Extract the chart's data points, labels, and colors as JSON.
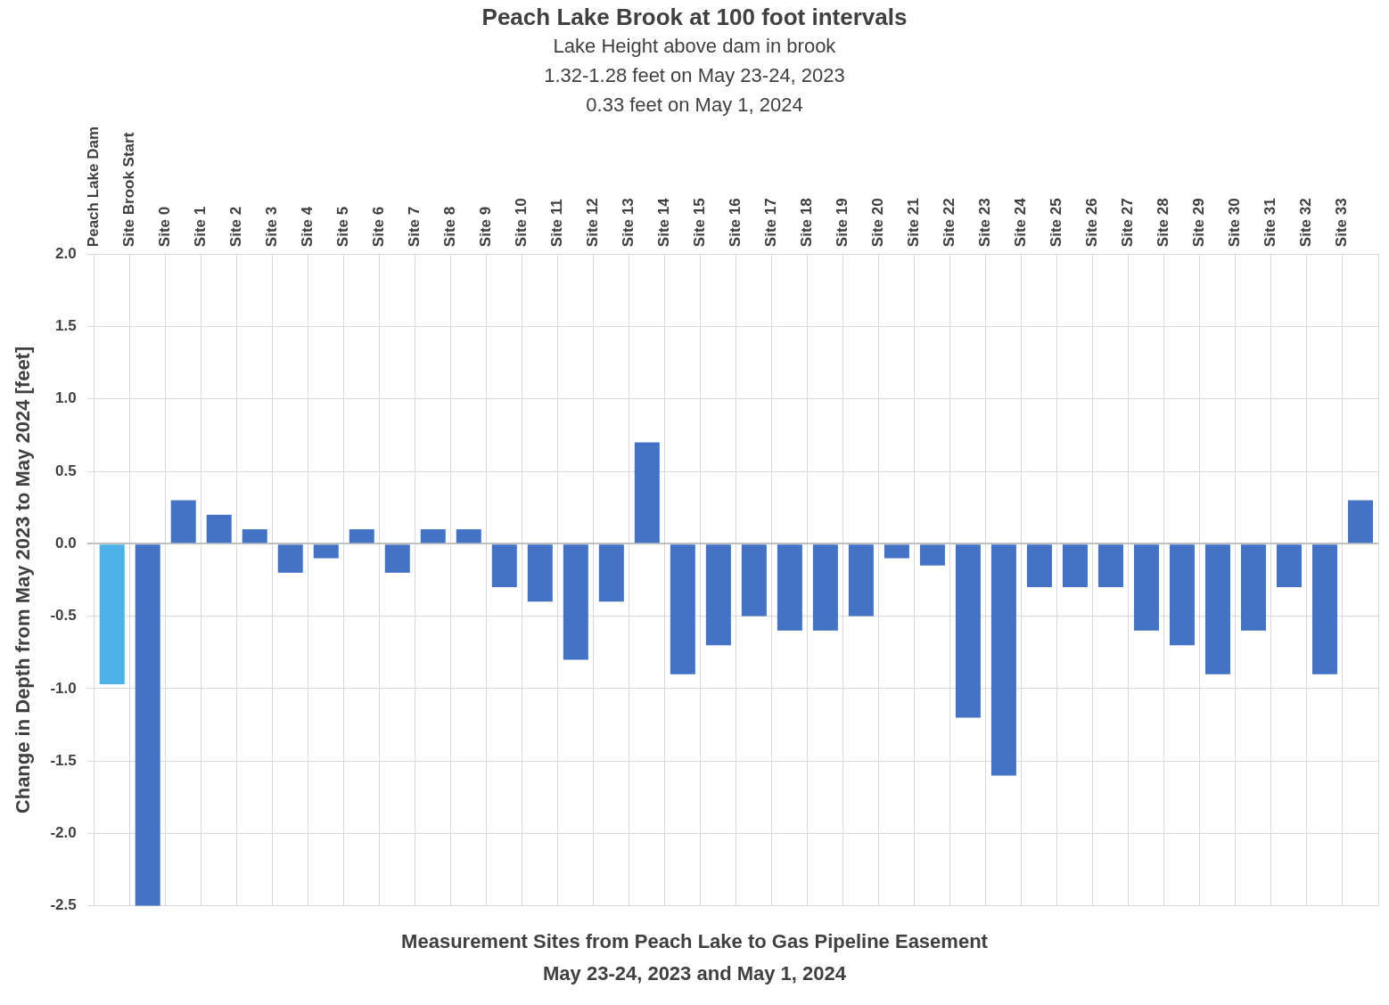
{
  "chart_data": {
    "type": "bar",
    "title": "Peach Lake Brook at 100 foot intervals",
    "subtitle": "Lake Height above dam in brook\n1.32-1.28 feet on May 23-24, 2023\n0.33 feet on May 1, 2024",
    "xlabel": "Measurement Sites from Peach Lake to Gas Pipeline Easement\nMay 23-24, 2023 and May 1, 2024",
    "ylabel": "Change in Depth from May 2023 to May 2024 [feet]",
    "categories": [
      "Peach Lake Dam",
      "Site Brook Start",
      "Site 0",
      "Site 1",
      "Site 2",
      "Site 3",
      "Site 4",
      "Site 5",
      "Site 6",
      "Site 7",
      "Site 8",
      "Site 9",
      "Site 10",
      "Site 11",
      "Site 12",
      "Site 13",
      "Site 14",
      "Site 15",
      "Site 16",
      "Site 17",
      "Site 18",
      "Site 19",
      "Site 20",
      "Site 21",
      "Site 22",
      "Site 23",
      "Site 24",
      "Site 25",
      "Site 26",
      "Site 27",
      "Site 28",
      "Site 29",
      "Site 30",
      "Site 31",
      "Site 32",
      "Site 33"
    ],
    "values": [
      -0.97,
      -2.5,
      0.3,
      0.2,
      0.1,
      -0.2,
      -0.1,
      0.1,
      -0.2,
      0.1,
      0.1,
      -0.3,
      -0.4,
      -0.8,
      -0.4,
      0.7,
      -0.9,
      -0.7,
      -0.5,
      -0.6,
      -0.6,
      -0.5,
      -0.1,
      -0.15,
      -1.2,
      -1.6,
      -0.3,
      -0.3,
      -0.3,
      -0.6,
      -0.7,
      -0.9,
      -0.6,
      -0.3,
      -0.9,
      0.3
    ],
    "colors": [
      "#4db3e6",
      "#4472c4",
      "#4472c4",
      "#4472c4",
      "#4472c4",
      "#4472c4",
      "#4472c4",
      "#4472c4",
      "#4472c4",
      "#4472c4",
      "#4472c4",
      "#4472c4",
      "#4472c4",
      "#4472c4",
      "#4472c4",
      "#4472c4",
      "#4472c4",
      "#4472c4",
      "#4472c4",
      "#4472c4",
      "#4472c4",
      "#4472c4",
      "#4472c4",
      "#4472c4",
      "#4472c4",
      "#4472c4",
      "#4472c4",
      "#4472c4",
      "#4472c4",
      "#4472c4",
      "#4472c4",
      "#4472c4",
      "#4472c4",
      "#4472c4",
      "#4472c4",
      "#4472c4"
    ],
    "ylim": [
      -2.5,
      2
    ],
    "yticks": [
      {
        "value": -2.5,
        "label": "-2.5"
      },
      {
        "value": -2,
        "label": "-2.0"
      },
      {
        "value": -1.5,
        "label": "-1.5"
      },
      {
        "value": -1,
        "label": "-1.0"
      },
      {
        "value": -0.5,
        "label": "-0.5"
      },
      {
        "value": 0,
        "label": "0.0"
      },
      {
        "value": 0.5,
        "label": "0.5"
      },
      {
        "value": 1,
        "label": "1.0"
      },
      {
        "value": 1.5,
        "label": "1.5"
      },
      {
        "value": 2,
        "label": "2.0"
      }
    ],
    "grid": true,
    "legend": false
  }
}
